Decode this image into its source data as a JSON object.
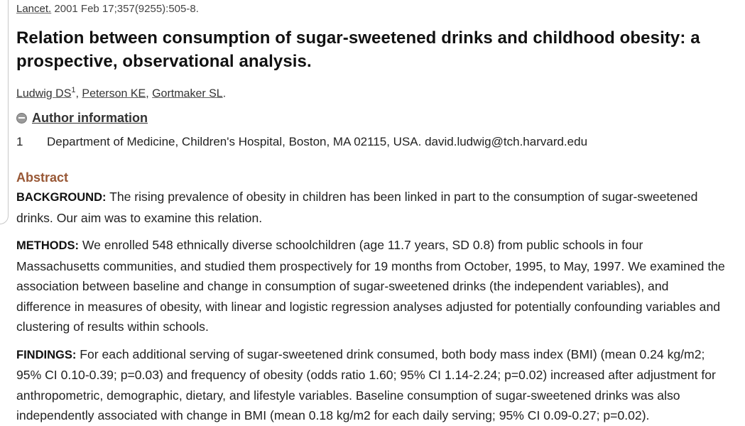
{
  "citation": {
    "journal": "Lancet.",
    "details": " 2001 Feb 17;357(9255):505-8."
  },
  "title": "Relation between consumption of sugar-sweetened drinks and childhood obesity: a prospective, observational analysis.",
  "authors": [
    {
      "name": "Ludwig DS",
      "sup": "1"
    },
    {
      "name": "Peterson KE"
    },
    {
      "name": "Gortmaker SL"
    }
  ],
  "author_info": {
    "label": "Author information",
    "icon": "minus-circle-icon"
  },
  "affiliation": {
    "number": "1",
    "text": "Department of Medicine, Children's Hospital, Boston, MA 02115, USA. david.ludwig@tch.harvard.edu"
  },
  "abstract": {
    "heading": "Abstract",
    "background_label": "BACKGROUND:",
    "background_text": " The rising prevalence of obesity in children has been linked in part to the consumption of sugar-sweetened drinks. Our aim was to examine this relation.",
    "methods_label": "METHODS:",
    "methods_text": " We enrolled 548 ethnically diverse schoolchildren (age 11.7 years, SD 0.8) from public schools in four Massachusetts communities, and studied them prospectively for 19 months from October, 1995, to May, 1997. We examined the association between baseline and change in consumption of sugar-sweetened drinks (the independent variables), and difference in measures of obesity, with linear and logistic regression analyses adjusted for potentially confounding variables and clustering of results within schools.",
    "findings_label": "FINDINGS:",
    "findings_text": " For each additional serving of sugar-sweetened drink consumed, both body mass index (BMI) (mean 0.24 kg/m2; 95% CI 0.10-0.39; p=0.03) and frequency of obesity (odds ratio 1.60; 95% CI 1.14-2.24; p=0.02) increased after adjustment for anthropometric, demographic, dietary, and lifestyle variables. Baseline consumption of sugar-sweetened drinks was also independently associated with change in BMI (mean 0.18 kg/m2 for each daily serving; 95% CI 0.09-0.27; p=0.02)."
  },
  "colors": {
    "abstract_heading": "#985735",
    "text": "#222222",
    "icon": "#9a9a9a"
  }
}
